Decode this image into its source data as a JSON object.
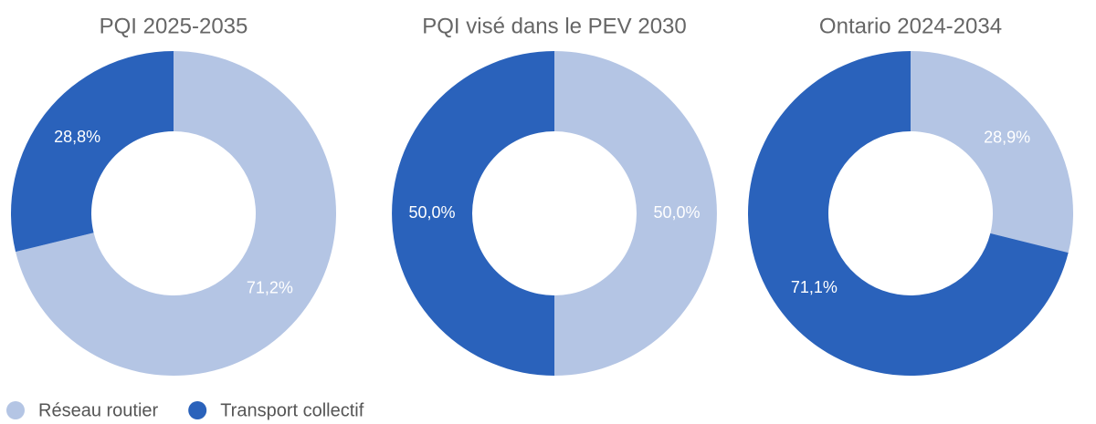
{
  "chart_data": [
    {
      "type": "pie",
      "title": "PQI 2025-2035",
      "categories": [
        "Réseau routier",
        "Transport collectif"
      ],
      "colors": [
        "#b4c5e4",
        "#2a62bb"
      ],
      "values": [
        71.2,
        28.8
      ],
      "value_labels": [
        "71,2%",
        "28,8%"
      ],
      "donut": true
    },
    {
      "type": "pie",
      "title": "PQI visé dans le PEV 2030",
      "categories": [
        "Réseau routier",
        "Transport collectif"
      ],
      "colors": [
        "#b4c5e4",
        "#2a62bb"
      ],
      "values": [
        50.0,
        50.0
      ],
      "value_labels": [
        "50,0%",
        "50,0%"
      ],
      "donut": true
    },
    {
      "type": "pie",
      "title": "Ontario 2024-2034",
      "categories": [
        "Réseau routier",
        "Transport collectif"
      ],
      "colors": [
        "#b4c5e4",
        "#2a62bb"
      ],
      "values": [
        28.9,
        71.1
      ],
      "value_labels": [
        "28,9%",
        "71,1%"
      ],
      "donut": true
    }
  ]
}
